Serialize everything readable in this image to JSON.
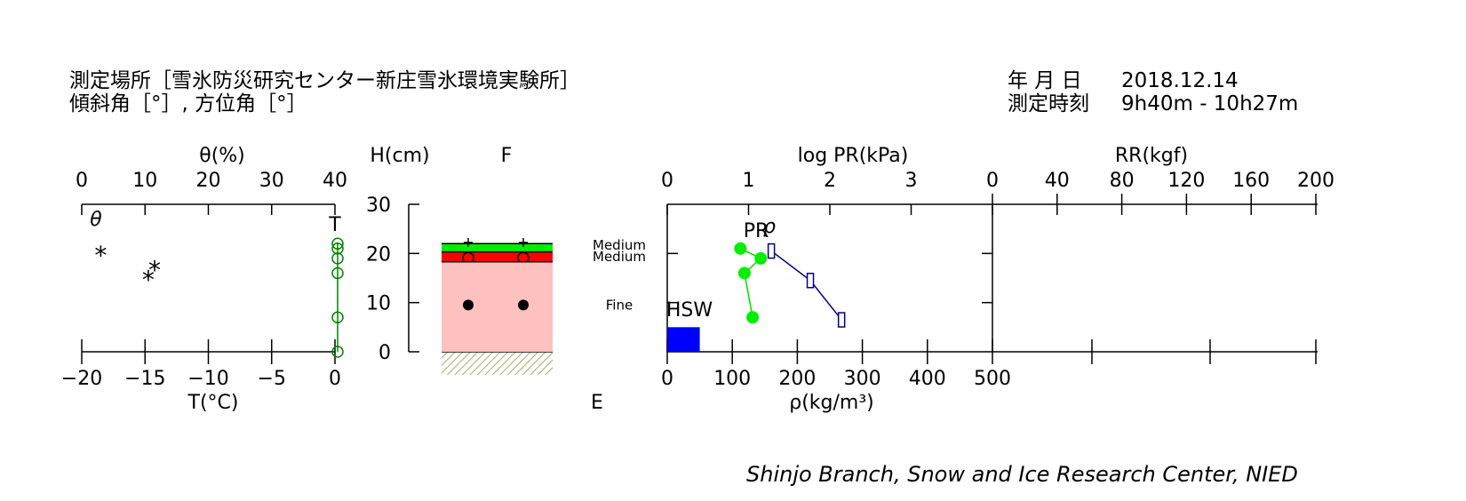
{
  "header": {
    "site": "測定場所［雪氷防災研究センター新庄雪氷環境実験所］",
    "angles": "傾斜角［°］, 方位角［°］",
    "date_label": "年 月 日",
    "date_value": "2018.12.14",
    "time_label": "測定時刻",
    "time_value": "9h40m - 10h27m"
  },
  "credit": "Shinjo Branch, Snow and Ice Research Center, NIED",
  "chart_data": {
    "type": "snow_pit_profile",
    "theta_axis": {
      "label": "θ(%)",
      "ticks": [
        "0",
        "10",
        "20",
        "30",
        "40"
      ],
      "range": [
        0,
        40
      ],
      "series_label": "θ"
    },
    "temp_axis": {
      "label": "T(°C)",
      "ticks": [
        "−20",
        "−15",
        "−10",
        "−5",
        "0"
      ],
      "range": [
        -20,
        0
      ],
      "series_label": "T"
    },
    "height_axis": {
      "label": "H(cm)",
      "ticks": [
        "0",
        "10",
        "20",
        "30"
      ],
      "range": [
        0,
        30
      ]
    },
    "layer_columns": {
      "top": "F",
      "bottom": "E"
    },
    "pr_axis": {
      "label": "log PR(kPa)",
      "ticks": [
        "0",
        "1",
        "2",
        "3"
      ],
      "range": [
        0,
        4
      ],
      "series_label": "PR"
    },
    "density_axis": {
      "label": "ρ(kg/m³)",
      "ticks": [
        "0",
        "100",
        "200",
        "300",
        "400",
        "500"
      ],
      "range": [
        0,
        500
      ],
      "series_label": "ρ"
    },
    "rr_axis": {
      "label": "RR(kgf)",
      "ticks": [
        "0",
        "40",
        "80",
        "120",
        "160",
        "200"
      ],
      "range": [
        0,
        200
      ]
    },
    "theta_points": [
      {
        "h": 21,
        "v": 3
      },
      {
        "h": 16,
        "v": 10.5
      },
      {
        "h": 18,
        "v": 11.5
      }
    ],
    "temperature_points": [
      {
        "h": 0,
        "t": 0
      },
      {
        "h": 7,
        "t": 0
      },
      {
        "h": 16,
        "t": 0
      },
      {
        "h": 19,
        "t": 0
      },
      {
        "h": 21,
        "t": 0
      },
      {
        "h": 22,
        "t": 0
      }
    ],
    "layers": [
      {
        "bottom": 20.3,
        "top": 22,
        "color": "#00ee00",
        "grain_label": "Medium",
        "mark": "plus"
      },
      {
        "bottom": 18.3,
        "top": 20.3,
        "color": "#ff0000",
        "grain_label": "Medium",
        "mark": "circle"
      },
      {
        "bottom": 0,
        "top": 18.3,
        "color": "#ffc0c0",
        "grain_label": "Fine",
        "mark": "dot"
      }
    ],
    "pr_points": [
      {
        "h": 7,
        "v": 1.05
      },
      {
        "h": 16,
        "v": 0.95
      },
      {
        "h": 19,
        "v": 1.15
      },
      {
        "h": 21,
        "v": 0.9
      }
    ],
    "density_points": [
      {
        "h": 6.5,
        "v": 268
      },
      {
        "h": 14.5,
        "v": 220
      },
      {
        "h": 20.5,
        "v": 160
      }
    ],
    "hsw": {
      "label": "HSW",
      "density_width": 50,
      "height": 5
    }
  }
}
